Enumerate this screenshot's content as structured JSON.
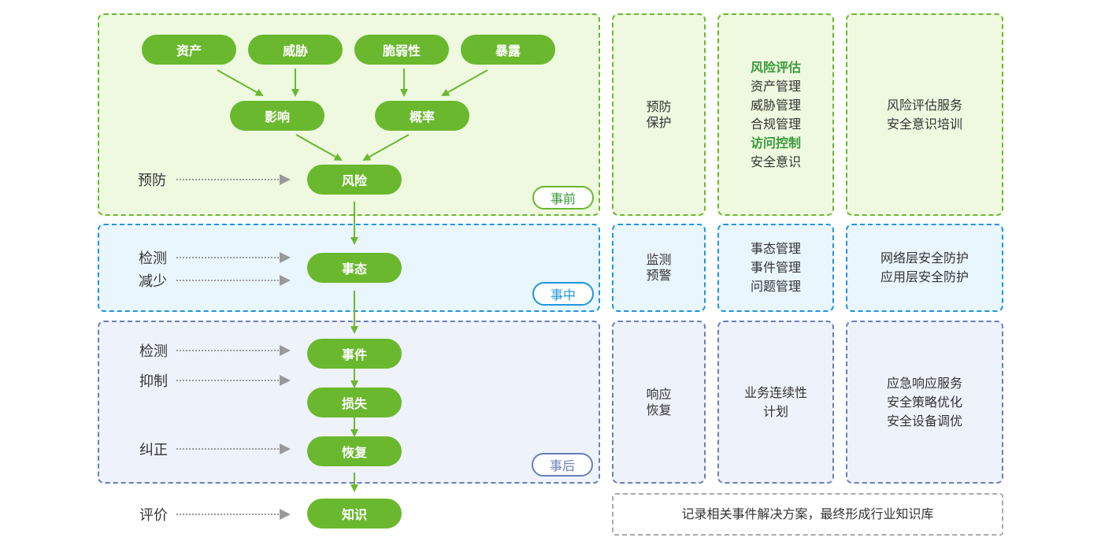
{
  "stages": {
    "pre": "事前",
    "mid": "事中",
    "post": "事后"
  },
  "nodes": {
    "asset": "资产",
    "threat": "威胁",
    "vuln": "脆弱性",
    "exposure": "暴露",
    "impact": "影响",
    "probability": "概率",
    "risk": "风险",
    "situation": "事态",
    "event": "事件",
    "loss": "损失",
    "recovery": "恢复",
    "knowledge": "知识"
  },
  "actions": {
    "prevent": "预防",
    "detect1": "检测",
    "reduce": "减少",
    "detect2": "检测",
    "suppress": "抑制",
    "correct": "纠正",
    "evaluate": "评价"
  },
  "columns": {
    "pre": {
      "phase": [
        "预防",
        "保护"
      ],
      "items": [
        {
          "text": "风险评估",
          "highlight": true
        },
        {
          "text": "资产管理"
        },
        {
          "text": "威胁管理"
        },
        {
          "text": "合规管理"
        },
        {
          "text": "访问控制",
          "highlight": true
        },
        {
          "text": "安全意识"
        }
      ],
      "services": [
        "风险评估服务",
        "安全意识培训"
      ]
    },
    "mid": {
      "phase": [
        "监测",
        "预警"
      ],
      "items": [
        {
          "text": "事态管理"
        },
        {
          "text": "事件管理"
        },
        {
          "text": "问题管理"
        }
      ],
      "services": [
        "网络层安全防护",
        "应用层安全防护"
      ]
    },
    "post": {
      "phase": [
        "响应",
        "恢复"
      ],
      "items": [
        {
          "text": "业务连续性"
        },
        {
          "text": "计划"
        }
      ],
      "services": [
        "应急响应服务",
        "安全策略优化",
        "安全设备调优"
      ]
    }
  },
  "note": "记录相关事件解决方案，最终形成行业知识库",
  "colors": {
    "green": "#6ab82e",
    "blue": "#1e96dc",
    "slate": "#6a7fb8",
    "highlight": "#3a9a3a"
  }
}
